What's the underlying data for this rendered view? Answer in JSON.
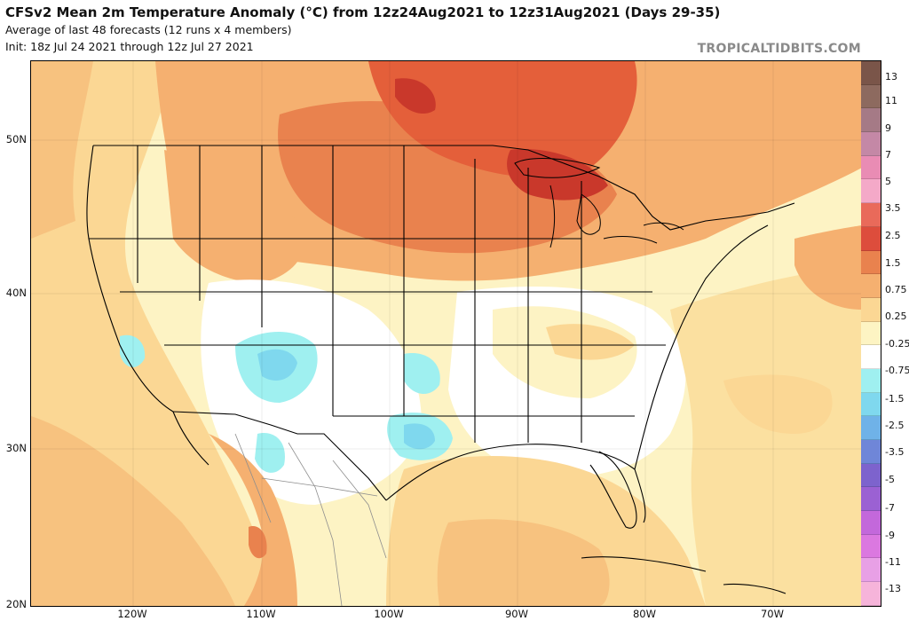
{
  "header": {
    "title": "CFSv2 Mean 2m Temperature Anomaly (°C) from 12z24Aug2021 to 12z31Aug2021 (Days 29-35)",
    "subtitle": "Average of last 48 forecasts (12 runs x 4 members)",
    "init": "Init: 18z Jul 24 2021 through 12z Jul 27 2021",
    "brand": "TROPICALTIDBITS.COM"
  },
  "axes": {
    "lat_labels": [
      "50N",
      "40N",
      "30N",
      "20N"
    ],
    "lon_labels": [
      "120W",
      "110W",
      "100W",
      "90W",
      "80W",
      "70W"
    ]
  },
  "colorbar": {
    "labels": [
      "13",
      "11",
      "9",
      "7",
      "5",
      "3.5",
      "2.5",
      "1.5",
      "0.75",
      "0.25",
      "-0.25",
      "-0.75",
      "-1.5",
      "-2.5",
      "-3.5",
      "-5",
      "-7",
      "-9",
      "-11",
      "-13"
    ],
    "colors": [
      "#7a5549",
      "#8d6a5f",
      "#a57a86",
      "#c488a6",
      "#e98cb4",
      "#f4a9c8",
      "#e96a5a",
      "#dd4d3c",
      "#e9824e",
      "#f5b070",
      "#fbd794",
      "#fdf4c3",
      "#ffffff",
      "#9ff0f0",
      "#7fd8ee",
      "#6fb2e8",
      "#6f86d8",
      "#7d63cd",
      "#9b61d3",
      "#c368db",
      "#db78e0",
      "#e8a0e6",
      "#f6b4da"
    ]
  },
  "map": {
    "colors": {
      "warm_strong": "#e45f3a",
      "warm_peak": "#c9382b",
      "warm_mid": "#f2a05e",
      "warm_light": "#f7c27f",
      "warm_pale": "#fbe0a0",
      "neutral_light": "#fdf3c4",
      "neutral": "#ffffff",
      "cool_light": "#9ff0f0",
      "cool_mid": "#7fd8ee"
    }
  }
}
